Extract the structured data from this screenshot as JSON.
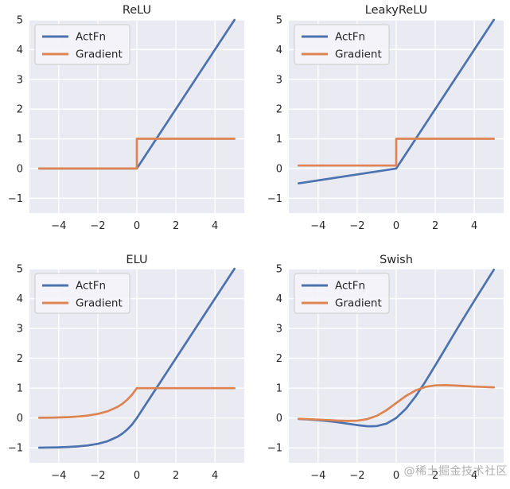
{
  "watermark": "@稀土掘金技术社区",
  "legend": {
    "entries": [
      "ActFn",
      "Gradient"
    ],
    "position": "upper-left"
  },
  "colors": {
    "actfn": "#4c72b0",
    "gradient": "#dd8452",
    "axes_bg": "#eaeaf2",
    "grid": "#ffffff",
    "text": "#262626",
    "legend_bg": "#f4f4f9",
    "legend_border": "#cccccc",
    "watermark": "#a8a8a8"
  },
  "axes": {
    "xlim": [
      -5.5,
      5.5
    ],
    "ylim": [
      -1.5,
      5
    ],
    "xticks": [
      -4,
      -2,
      0,
      2,
      4
    ],
    "xticklabels": [
      "−4",
      "−2",
      "0",
      "2",
      "4"
    ],
    "yticks": [
      -1,
      0,
      1,
      2,
      3,
      4,
      5
    ],
    "yticklabels": [
      "−1",
      "0",
      "1",
      "2",
      "3",
      "4",
      "5"
    ],
    "grid": true
  },
  "chart_data": [
    {
      "type": "line",
      "title": "ReLU",
      "series": [
        {
          "name": "ActFn",
          "points": [
            [
              -5,
              0
            ],
            [
              0,
              0
            ],
            [
              5,
              5
            ]
          ]
        },
        {
          "name": "Gradient",
          "points": [
            [
              -5,
              0
            ],
            [
              0,
              0
            ],
            [
              0,
              1
            ],
            [
              5,
              1
            ]
          ]
        }
      ]
    },
    {
      "type": "line",
      "title": "LeakyReLU",
      "series": [
        {
          "name": "ActFn",
          "points": [
            [
              -5,
              -0.5
            ],
            [
              0,
              0
            ],
            [
              5,
              5
            ]
          ]
        },
        {
          "name": "Gradient",
          "points": [
            [
              -5,
              0.1
            ],
            [
              0,
              0.1
            ],
            [
              0,
              1
            ],
            [
              5,
              1
            ]
          ]
        }
      ]
    },
    {
      "type": "line",
      "title": "ELU",
      "series": [
        {
          "name": "ActFn",
          "points": [
            [
              -5,
              -0.993
            ],
            [
              -4.5,
              -0.989
            ],
            [
              -4,
              -0.982
            ],
            [
              -3.5,
              -0.97
            ],
            [
              -3,
              -0.95
            ],
            [
              -2.5,
              -0.918
            ],
            [
              -2,
              -0.865
            ],
            [
              -1.5,
              -0.777
            ],
            [
              -1,
              -0.632
            ],
            [
              -0.75,
              -0.528
            ],
            [
              -0.5,
              -0.393
            ],
            [
              -0.25,
              -0.221
            ],
            [
              0,
              0
            ],
            [
              5,
              5
            ]
          ]
        },
        {
          "name": "Gradient",
          "points": [
            [
              -5,
              0.007
            ],
            [
              -4.5,
              0.011
            ],
            [
              -4,
              0.018
            ],
            [
              -3.5,
              0.03
            ],
            [
              -3,
              0.05
            ],
            [
              -2.5,
              0.082
            ],
            [
              -2,
              0.135
            ],
            [
              -1.5,
              0.223
            ],
            [
              -1,
              0.368
            ],
            [
              -0.75,
              0.472
            ],
            [
              -0.5,
              0.607
            ],
            [
              -0.25,
              0.779
            ],
            [
              0,
              1
            ],
            [
              5,
              1
            ]
          ]
        }
      ]
    },
    {
      "type": "line",
      "title": "Swish",
      "series": [
        {
          "name": "ActFn",
          "points": [
            [
              -5,
              -0.033
            ],
            [
              -4.5,
              -0.049
            ],
            [
              -4,
              -0.072
            ],
            [
              -3.5,
              -0.102
            ],
            [
              -3,
              -0.142
            ],
            [
              -2.5,
              -0.19
            ],
            [
              -2,
              -0.238
            ],
            [
              -1.5,
              -0.274
            ],
            [
              -1.25,
              -0.278
            ],
            [
              -1,
              -0.269
            ],
            [
              -0.5,
              -0.189
            ],
            [
              0,
              0
            ],
            [
              0.5,
              0.311
            ],
            [
              1,
              0.731
            ],
            [
              1.5,
              1.226
            ],
            [
              2,
              1.762
            ],
            [
              2.5,
              2.31
            ],
            [
              3,
              2.858
            ],
            [
              3.5,
              3.397
            ],
            [
              4,
              3.928
            ],
            [
              4.5,
              4.451
            ],
            [
              5,
              4.967
            ]
          ]
        },
        {
          "name": "Gradient",
          "points": [
            [
              -5,
              -0.027
            ],
            [
              -4.5,
              -0.04
            ],
            [
              -4,
              -0.053
            ],
            [
              -3.5,
              -0.07
            ],
            [
              -3,
              -0.088
            ],
            [
              -2.5,
              -0.099
            ],
            [
              -2,
              -0.091
            ],
            [
              -1.5,
              -0.041
            ],
            [
              -1,
              0.072
            ],
            [
              -0.5,
              0.26
            ],
            [
              0,
              0.5
            ],
            [
              0.5,
              0.74
            ],
            [
              1,
              0.928
            ],
            [
              1.5,
              1.041
            ],
            [
              2,
              1.091
            ],
            [
              2.5,
              1.099
            ],
            [
              3,
              1.088
            ],
            [
              3.5,
              1.07
            ],
            [
              4,
              1.053
            ],
            [
              4.5,
              1.038
            ],
            [
              5,
              1.027
            ]
          ]
        }
      ]
    }
  ]
}
